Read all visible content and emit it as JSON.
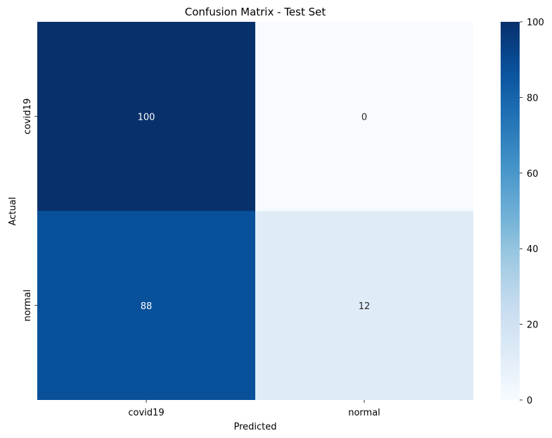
{
  "chart_data": {
    "type": "heatmap",
    "title": "Confusion Matrix - Test Set",
    "xlabel": "Predicted",
    "ylabel": "Actual",
    "x_categories": [
      "covid19",
      "normal"
    ],
    "y_categories": [
      "covid19",
      "normal"
    ],
    "values": [
      [
        100,
        0
      ],
      [
        88,
        12
      ]
    ],
    "colormap": "Blues",
    "colorbar": {
      "min": 0,
      "max": 100,
      "ticks": [
        0,
        20,
        40,
        60,
        80,
        100
      ],
      "tick_labels": [
        "0",
        "20",
        "40",
        "60",
        "80",
        "100"
      ]
    },
    "colors": {
      "low": "#f7fbff",
      "high": "#08306b"
    }
  }
}
